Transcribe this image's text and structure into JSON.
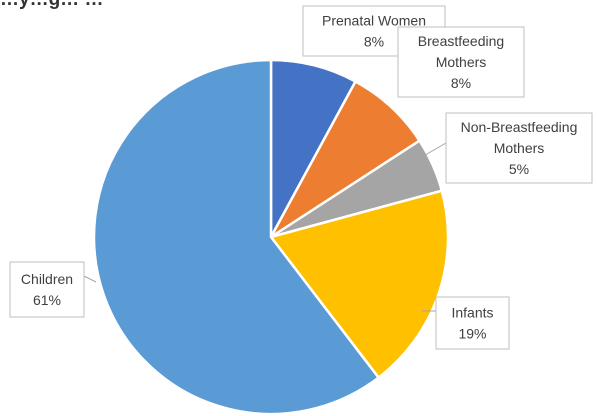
{
  "chart_data": {
    "type": "pie",
    "title": "…y…g… …",
    "start_angle_deg": 0,
    "direction": "clockwise",
    "slices": [
      {
        "label": "Prenatal Women",
        "value": 8,
        "value_label": "8%",
        "color": "#4472c4"
      },
      {
        "label": "Breastfeeding Mothers",
        "value": 8,
        "value_label": "8%",
        "color": "#ed7d31"
      },
      {
        "label": "Non-Breastfeeding Mothers",
        "value": 5,
        "value_label": "5%",
        "color": "#a5a5a5"
      },
      {
        "label": "Infants",
        "value": 19,
        "value_label": "19%",
        "color": "#ffc000"
      },
      {
        "label": "Children",
        "value": 61,
        "value_label": "61%",
        "color": "#5b9bd5"
      }
    ]
  }
}
